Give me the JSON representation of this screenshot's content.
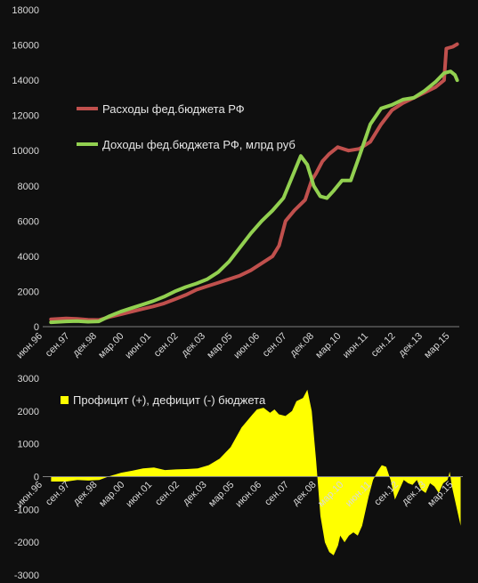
{
  "chart_data": [
    {
      "type": "line",
      "ylim": [
        0,
        18000
      ],
      "y_ticks": [
        0,
        2000,
        4000,
        6000,
        8000,
        10000,
        12000,
        14000,
        16000,
        18000
      ],
      "x_tick_labels": [
        "июн.96",
        "сен.97",
        "дек.98",
        "мар.00",
        "июн.01",
        "сен.02",
        "дек.03",
        "мар.05",
        "июн.06",
        "сен.07",
        "дек.08",
        "мар.10",
        "июн.11",
        "сен.12",
        "дек.13",
        "мар.15"
      ],
      "x_tick_dates": [
        1996.42,
        1997.67,
        1998.92,
        2000.17,
        2001.42,
        2002.67,
        2003.92,
        2005.17,
        2006.42,
        2007.67,
        2008.92,
        2010.17,
        2011.42,
        2012.67,
        2013.92,
        2015.17
      ],
      "x_range": [
        1996.42,
        2015.6
      ],
      "legend_position": "top-left",
      "grid": false,
      "series": [
        {
          "name": "Расходы фед.бюджета РФ",
          "color": "#c0504d",
          "x": [
            1996.8,
            1997.5,
            1998.0,
            1998.5,
            1999.0,
            1999.5,
            2000.0,
            2000.5,
            2001.0,
            2001.5,
            2002.0,
            2002.5,
            2003.0,
            2003.5,
            2004.0,
            2004.5,
            2005.0,
            2005.5,
            2006.0,
            2006.5,
            2007.0,
            2007.3,
            2007.6,
            2008.0,
            2008.5,
            2008.8,
            2009.0,
            2009.3,
            2009.6,
            2010.0,
            2010.5,
            2011.0,
            2011.5,
            2012.0,
            2012.5,
            2013.0,
            2013.5,
            2014.0,
            2014.5,
            2014.9,
            2015.0,
            2015.3,
            2015.5
          ],
          "y": [
            420,
            470,
            440,
            390,
            380,
            550,
            700,
            850,
            1000,
            1150,
            1320,
            1550,
            1800,
            2100,
            2300,
            2500,
            2700,
            2900,
            3200,
            3600,
            4000,
            4600,
            6000,
            6600,
            7200,
            8300,
            8700,
            9400,
            9800,
            10200,
            10000,
            10100,
            10500,
            11500,
            12300,
            12700,
            13000,
            13300,
            13600,
            14000,
            15800,
            15900,
            16050
          ]
        },
        {
          "name": "Доходы фед.бюджета РФ, млрд руб",
          "color": "#92d050",
          "x": [
            1996.8,
            1997.5,
            1998.0,
            1998.5,
            1999.0,
            1999.5,
            2000.0,
            2000.5,
            2001.0,
            2001.5,
            2002.0,
            2002.5,
            2003.0,
            2003.5,
            2004.0,
            2004.5,
            2005.0,
            2005.5,
            2006.0,
            2006.5,
            2007.0,
            2007.5,
            2008.0,
            2008.3,
            2008.6,
            2008.9,
            2009.2,
            2009.5,
            2009.8,
            2010.2,
            2010.6,
            2011.0,
            2011.5,
            2012.0,
            2012.5,
            2013.0,
            2013.5,
            2014.0,
            2014.5,
            2014.9,
            2015.2,
            2015.4,
            2015.5
          ],
          "y": [
            250,
            300,
            320,
            280,
            300,
            600,
            850,
            1050,
            1250,
            1450,
            1700,
            2000,
            2250,
            2450,
            2700,
            3100,
            3700,
            4500,
            5300,
            6000,
            6600,
            7300,
            8800,
            9700,
            9200,
            8000,
            7400,
            7300,
            7700,
            8300,
            8300,
            9700,
            11500,
            12400,
            12600,
            12900,
            13000,
            13400,
            13900,
            14400,
            14500,
            14300,
            14000
          ]
        }
      ]
    },
    {
      "type": "area",
      "ylim": [
        -3000,
        3000
      ],
      "y_ticks": [
        -3000,
        -2000,
        -1000,
        0,
        1000,
        2000,
        3000
      ],
      "x_tick_labels": [
        "июн.96",
        "сен.97",
        "дек.98",
        "мар.00",
        "июн.01",
        "сен.02",
        "дек.03",
        "мар.05",
        "июн.06",
        "сен.07",
        "дек.08",
        "мар.10",
        "июн.11",
        "сен.12",
        "дек.13",
        "мар.15"
      ],
      "x_tick_dates": [
        1996.42,
        1997.67,
        1998.92,
        2000.17,
        2001.42,
        2002.67,
        2003.92,
        2005.17,
        2006.42,
        2007.67,
        2008.92,
        2010.17,
        2011.42,
        2012.67,
        2013.92,
        2015.17
      ],
      "x_range": [
        1996.42,
        2015.6
      ],
      "legend_position": "top-left",
      "grid": false,
      "series": [
        {
          "name": "Профицит (+), дефицит (-) бюджета",
          "color": "#ffff00",
          "x": [
            1996.8,
            1997.5,
            1998.0,
            1998.5,
            1999.0,
            1999.5,
            2000.0,
            2000.5,
            2001.0,
            2001.5,
            2002.0,
            2002.5,
            2003.0,
            2003.5,
            2004.0,
            2004.5,
            2005.0,
            2005.5,
            2006.0,
            2006.2,
            2006.5,
            2006.8,
            2007.0,
            2007.2,
            2007.5,
            2007.8,
            2008.0,
            2008.3,
            2008.5,
            2008.7,
            2008.9,
            2009.1,
            2009.3,
            2009.5,
            2009.7,
            2009.9,
            2010.0,
            2010.2,
            2010.4,
            2010.6,
            2010.8,
            2011.0,
            2011.3,
            2011.5,
            2011.7,
            2011.9,
            2012.1,
            2012.3,
            2012.5,
            2012.7,
            2012.9,
            2013.1,
            2013.3,
            2013.5,
            2013.7,
            2013.9,
            2014.1,
            2014.3,
            2014.5,
            2014.7,
            2014.9,
            2015.0,
            2015.1,
            2015.3,
            2015.5
          ],
          "y": [
            -150,
            -150,
            -100,
            -120,
            -100,
            20,
            120,
            180,
            250,
            280,
            200,
            220,
            230,
            250,
            350,
            550,
            900,
            1500,
            1900,
            2050,
            2100,
            1950,
            2050,
            1900,
            1850,
            2000,
            2300,
            2400,
            2650,
            2000,
            500,
            -1200,
            -2000,
            -2300,
            -2400,
            -2100,
            -1800,
            -2000,
            -1800,
            -1700,
            -1800,
            -1500,
            -600,
            -100,
            150,
            350,
            300,
            -100,
            -700,
            -400,
            -100,
            -200,
            -250,
            -100,
            -400,
            -500,
            -200,
            -300,
            -500,
            -200,
            -100,
            150,
            -300,
            -900,
            -1500
          ]
        }
      ]
    }
  ]
}
